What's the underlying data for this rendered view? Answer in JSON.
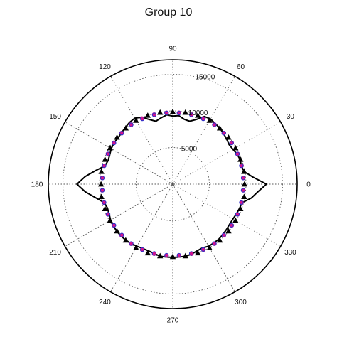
{
  "chart_data": {
    "type": "scatter",
    "projection": "polar",
    "title": "Group 10",
    "angle_unit": "degrees",
    "angle_ticks": [
      "0",
      "30",
      "60",
      "90",
      "120",
      "150",
      "180",
      "210",
      "240",
      "270",
      "300",
      "330"
    ],
    "radial_ticks": [
      "5000",
      "10000",
      "15000"
    ],
    "rlim": [
      0,
      17000
    ],
    "grid": true,
    "legend": "none",
    "series": [
      {
        "style": "solid black line",
        "color": "#000000",
        "theta": [
          0,
          5,
          10,
          15,
          20,
          25,
          30,
          35,
          40,
          45,
          50,
          55,
          60,
          65,
          70,
          75,
          80,
          85,
          90,
          95,
          100,
          105,
          110,
          115,
          120,
          125,
          130,
          135,
          140,
          145,
          150,
          155,
          160,
          165,
          170,
          175,
          180,
          185,
          190,
          195,
          200,
          205,
          210,
          215,
          220,
          225,
          230,
          235,
          240,
          245,
          250,
          255,
          260,
          265,
          270,
          275,
          280,
          285,
          290,
          295,
          300,
          305,
          310,
          315,
          320,
          325,
          330,
          335,
          340,
          345,
          350,
          355
        ],
        "r": [
          12800,
          11000,
          9900,
          9700,
          9800,
          9700,
          9500,
          9400,
          9600,
          9800,
          10000,
          10100,
          10300,
          10200,
          9400,
          8900,
          9000,
          9400,
          9300,
          9500,
          9200,
          8900,
          9400,
          10100,
          10400,
          10300,
          10100,
          9900,
          9800,
          9800,
          9700,
          9500,
          9400,
          9600,
          10700,
          12000,
          13100,
          12000,
          10700,
          9700,
          9500,
          9600,
          9800,
          9900,
          10000,
          10000,
          10000,
          9900,
          9800,
          9700,
          9700,
          9800,
          10000,
          10000,
          10000,
          10000,
          10000,
          9900,
          9700,
          9600,
          9800,
          9800,
          9800,
          9700,
          9600,
          9500,
          9500,
          9600,
          9700,
          9800,
          10900,
          11700
        ]
      },
      {
        "style": "black triangles",
        "color": "#000000",
        "theta": [
          0,
          10,
          20,
          30,
          40,
          50,
          60,
          70,
          80,
          90,
          100,
          110,
          120,
          130,
          140,
          150,
          160,
          170,
          180,
          190,
          200,
          210,
          220,
          230,
          240,
          250,
          260,
          270,
          280,
          290,
          300,
          310,
          320,
          330,
          340,
          350
        ],
        "r": [
          9800,
          9900,
          9850,
          9900,
          9950,
          10000,
          10050,
          10000,
          9950,
          9900,
          9950,
          10000,
          10050,
          10000,
          9950,
          9900,
          9850,
          9900,
          9800,
          9900,
          9850,
          9900,
          9950,
          10000,
          10050,
          10000,
          9950,
          9900,
          9950,
          10000,
          10050,
          10000,
          9950,
          9900,
          9850,
          9900
        ]
      },
      {
        "style": "magenta dots",
        "color": "#d4148c",
        "theta": [
          5,
          15,
          25,
          35,
          45,
          55,
          65,
          75,
          85,
          95,
          105,
          115,
          125,
          135,
          145,
          155,
          165,
          175,
          185,
          195,
          205,
          215,
          225,
          235,
          245,
          255,
          265,
          275,
          285,
          295,
          305,
          315,
          325,
          335,
          345,
          355
        ],
        "r": [
          9700,
          9750,
          9800,
          9850,
          9900,
          9950,
          9900,
          9850,
          9800,
          9800,
          9850,
          9900,
          9950,
          9900,
          9850,
          9800,
          9750,
          9700,
          9700,
          9750,
          9800,
          9850,
          9900,
          9950,
          9900,
          9850,
          9800,
          9800,
          9850,
          9900,
          9950,
          9900,
          9850,
          9800,
          9750,
          9700
        ]
      },
      {
        "style": "blue open circles",
        "color": "#3030c8",
        "theta": [
          5,
          15,
          25,
          35,
          45,
          55,
          65,
          75,
          85,
          95,
          105,
          115,
          125,
          135,
          145,
          155,
          165,
          175,
          185,
          195,
          205,
          215,
          225,
          235,
          245,
          255,
          265,
          275,
          285,
          295,
          305,
          315,
          325,
          335,
          345,
          355
        ],
        "r": [
          9650,
          9700,
          9750,
          9800,
          9850,
          9900,
          9850,
          9800,
          9750,
          9750,
          9800,
          9850,
          9900,
          9850,
          9800,
          9750,
          9700,
          9650,
          9650,
          9700,
          9750,
          9800,
          9850,
          9900,
          9850,
          9800,
          9750,
          9750,
          9800,
          9850,
          9900,
          9850,
          9800,
          9750,
          9700,
          9650
        ]
      }
    ]
  }
}
